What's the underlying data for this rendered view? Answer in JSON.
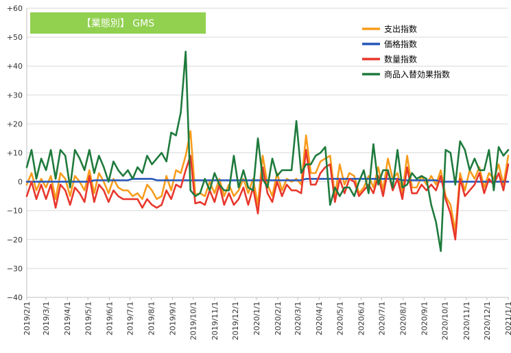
{
  "chart_data": {
    "type": "line",
    "title": "【業態別】 GMS",
    "title_box_color": "#92d050",
    "ylim": [
      -40,
      60
    ],
    "yticks": [
      -40,
      -30,
      -20,
      -10,
      0,
      10,
      20,
      30,
      40,
      50,
      60
    ],
    "ytick_labels": [
      "−40",
      "−30",
      "−20",
      "−10",
      "0",
      "+10",
      "+20",
      "+30",
      "+40",
      "+50",
      "+60"
    ],
    "xlim": [
      "2019-02-01",
      "2021-01-01"
    ],
    "x_ticks": [
      {
        "date": "2019-02-01",
        "label": "2019/2/1"
      },
      {
        "date": "2019-03-01",
        "label": "2019/3/1"
      },
      {
        "date": "2019-04-01",
        "label": "2019/4/1"
      },
      {
        "date": "2019-05-01",
        "label": "2019/5/1"
      },
      {
        "date": "2019-06-01",
        "label": "2019/6/1"
      },
      {
        "date": "2019-07-01",
        "label": "2019/7/1"
      },
      {
        "date": "2019-08-01",
        "label": "2019/8/1"
      },
      {
        "date": "2019-09-01",
        "label": "2019/9/1"
      },
      {
        "date": "2019-10-01",
        "label": "2019/10/1"
      },
      {
        "date": "2019-11-01",
        "label": "2019/11/1"
      },
      {
        "date": "2019-12-01",
        "label": "2019/12/1"
      },
      {
        "date": "2020-01-01",
        "label": "2020/1/1"
      },
      {
        "date": "2020-02-01",
        "label": "2020/2/1"
      },
      {
        "date": "2020-03-01",
        "label": "2020/3/1"
      },
      {
        "date": "2020-04-01",
        "label": "2020/4/1"
      },
      {
        "date": "2020-05-01",
        "label": "2020/5/1"
      },
      {
        "date": "2020-06-01",
        "label": "2020/6/1"
      },
      {
        "date": "2020-07-01",
        "label": "2020/7/1"
      },
      {
        "date": "2020-08-01",
        "label": "2020/8/1"
      },
      {
        "date": "2020-09-01",
        "label": "2020/9/1"
      },
      {
        "date": "2020-10-01",
        "label": "2020/10/1"
      },
      {
        "date": "2020-11-01",
        "label": "2020/11/1"
      },
      {
        "date": "2020-12-01",
        "label": "2020/12/1"
      },
      {
        "date": "2021-01-01",
        "label": "2021/1/1"
      }
    ],
    "grid": {
      "horizontal": true,
      "vertical": false
    },
    "legend_position": "top-right",
    "x": [
      "2019-02-01",
      "2019-02-08",
      "2019-02-15",
      "2019-02-22",
      "2019-03-01",
      "2019-03-08",
      "2019-03-15",
      "2019-03-22",
      "2019-03-29",
      "2019-04-05",
      "2019-04-12",
      "2019-04-19",
      "2019-04-26",
      "2019-05-03",
      "2019-05-10",
      "2019-05-17",
      "2019-05-24",
      "2019-05-31",
      "2019-06-07",
      "2019-06-14",
      "2019-06-21",
      "2019-06-28",
      "2019-07-05",
      "2019-07-12",
      "2019-07-19",
      "2019-07-26",
      "2019-08-02",
      "2019-08-09",
      "2019-08-16",
      "2019-08-23",
      "2019-08-30",
      "2019-09-06",
      "2019-09-13",
      "2019-09-20",
      "2019-09-27",
      "2019-10-04",
      "2019-10-11",
      "2019-10-18",
      "2019-10-25",
      "2019-11-01",
      "2019-11-08",
      "2019-11-15",
      "2019-11-22",
      "2019-11-29",
      "2019-12-06",
      "2019-12-13",
      "2019-12-20",
      "2019-12-27",
      "2020-01-03",
      "2020-01-10",
      "2020-01-17",
      "2020-01-24",
      "2020-01-31",
      "2020-02-07",
      "2020-02-14",
      "2020-02-21",
      "2020-02-28",
      "2020-03-06",
      "2020-03-13",
      "2020-03-20",
      "2020-03-27",
      "2020-04-03",
      "2020-04-10",
      "2020-04-17",
      "2020-04-24",
      "2020-05-01",
      "2020-05-08",
      "2020-05-15",
      "2020-05-22",
      "2020-05-29",
      "2020-06-05",
      "2020-06-12",
      "2020-06-19",
      "2020-06-26",
      "2020-07-03",
      "2020-07-10",
      "2020-07-17",
      "2020-07-24",
      "2020-07-31",
      "2020-08-07",
      "2020-08-14",
      "2020-08-21",
      "2020-08-28",
      "2020-09-04",
      "2020-09-11",
      "2020-09-18",
      "2020-09-25",
      "2020-10-02",
      "2020-10-09",
      "2020-10-16",
      "2020-10-23",
      "2020-10-30",
      "2020-11-06",
      "2020-11-13",
      "2020-11-20",
      "2020-11-27",
      "2020-12-04",
      "2020-12-11",
      "2020-12-18",
      "2020-12-25",
      "2021-01-01"
    ],
    "series": [
      {
        "name": "支出指数",
        "color": "#f79c1c",
        "values": [
          -1,
          3,
          -3,
          1,
          -2,
          2,
          -6,
          3,
          1,
          -5,
          2,
          0,
          -3,
          4,
          -4,
          3,
          0,
          -4,
          1,
          -2,
          -3,
          -3,
          -5,
          -4,
          -6,
          -1,
          -3,
          -6,
          -5,
          2,
          -3,
          4,
          3,
          9,
          17.5,
          -4.5,
          -4,
          -5,
          0,
          -4,
          1,
          -5,
          -1,
          -5,
          -3,
          1,
          -4,
          1,
          -8,
          9,
          -1,
          -5,
          3,
          -3,
          1,
          0,
          1,
          -1,
          16,
          3,
          3,
          7,
          8,
          9,
          -5,
          6,
          -1,
          3,
          2,
          -4,
          -2,
          2,
          -2,
          5,
          -3,
          8,
          1,
          3,
          -4,
          9,
          -2,
          -2,
          2,
          -1,
          2,
          -1,
          4,
          -5,
          -8,
          -17,
          3,
          -3,
          4,
          1,
          5,
          -2,
          3,
          1,
          6,
          -1,
          9
        ]
      },
      {
        "name": "価格指数",
        "color": "#2456b8",
        "values": [
          0,
          0,
          0,
          0,
          0,
          0,
          0,
          0,
          0,
          0,
          0,
          0,
          0,
          0,
          0.5,
          0.5,
          0.5,
          0.5,
          0.5,
          0.5,
          0.5,
          0.5,
          1,
          1,
          1,
          1,
          1,
          0.5,
          0.5,
          0.5,
          0.5,
          0.5,
          0.5,
          0.5,
          0.5,
          0.5,
          0.5,
          0.5,
          0.5,
          0.5,
          0.5,
          0.5,
          0.5,
          0.5,
          0.5,
          0.5,
          0.5,
          0.5,
          0.5,
          0.5,
          0.5,
          0.5,
          0.5,
          0.5,
          0.5,
          0.5,
          0.5,
          0.5,
          1,
          1,
          1,
          1,
          1,
          1,
          1,
          1,
          1,
          1,
          1,
          1,
          1,
          1,
          1,
          1,
          1,
          1,
          1,
          1,
          0.5,
          0.5,
          0.5,
          0.5,
          0.5,
          0.5,
          0.5,
          0.5,
          0,
          0,
          0,
          0,
          0,
          0,
          0,
          0,
          0,
          0,
          0,
          0,
          0,
          0,
          0
        ]
      },
      {
        "name": "数量指数",
        "color": "#e8372c",
        "values": [
          -5,
          0,
          -6,
          -1,
          -6,
          -1,
          -9,
          -1,
          -3,
          -8,
          -2,
          -4,
          -7,
          2,
          -7,
          -1,
          -3,
          -7,
          -3,
          -5,
          -6,
          -6,
          -6,
          -6,
          -9,
          -6,
          -8,
          -9,
          -8,
          -3,
          -6,
          -1,
          -2,
          4,
          9,
          -7.5,
          -7,
          -8,
          -3,
          -7,
          -1,
          -8,
          -4,
          -8,
          -6,
          -2,
          -8,
          -2,
          -11,
          5,
          -4,
          -7,
          0,
          -5,
          -1,
          -3,
          -3,
          -4,
          11,
          -1,
          -1,
          3,
          5,
          6,
          -7,
          1,
          -4,
          1,
          0,
          -5,
          -3,
          -1,
          -4,
          2,
          -5,
          4,
          -3,
          1,
          -6,
          5,
          -4,
          -4,
          -1,
          -3,
          -1,
          -3,
          2,
          -6,
          -11,
          -20,
          1,
          -5,
          -3,
          -1,
          3,
          -4,
          1,
          -1,
          3,
          -3,
          6
        ]
      },
      {
        "name": "商品入替効果指数",
        "color": "#1e7a3c",
        "values": [
          5,
          11,
          1,
          8,
          4,
          11,
          1,
          11,
          9,
          -2,
          11,
          8,
          4,
          11,
          3,
          9,
          5,
          0,
          7,
          4,
          2,
          4,
          1,
          5,
          3,
          9,
          6,
          8,
          10,
          7,
          17,
          16,
          24,
          45,
          -3,
          -5,
          -4,
          1,
          -3,
          3,
          -1,
          -3,
          -3,
          9,
          -2,
          4,
          -2,
          -3,
          15,
          1,
          -2,
          8,
          2,
          4,
          4,
          4,
          21,
          3,
          6,
          6,
          9,
          10,
          12,
          -8,
          -2,
          -5,
          -2,
          -2,
          -5,
          0,
          4,
          -4,
          13,
          -1,
          4,
          4,
          -2,
          11,
          -2,
          -1,
          3,
          1,
          2,
          1,
          -8,
          -14,
          -24,
          11,
          10,
          -1,
          14,
          11,
          4,
          8,
          4,
          4,
          11,
          -3,
          12,
          9,
          11
        ]
      }
    ]
  }
}
